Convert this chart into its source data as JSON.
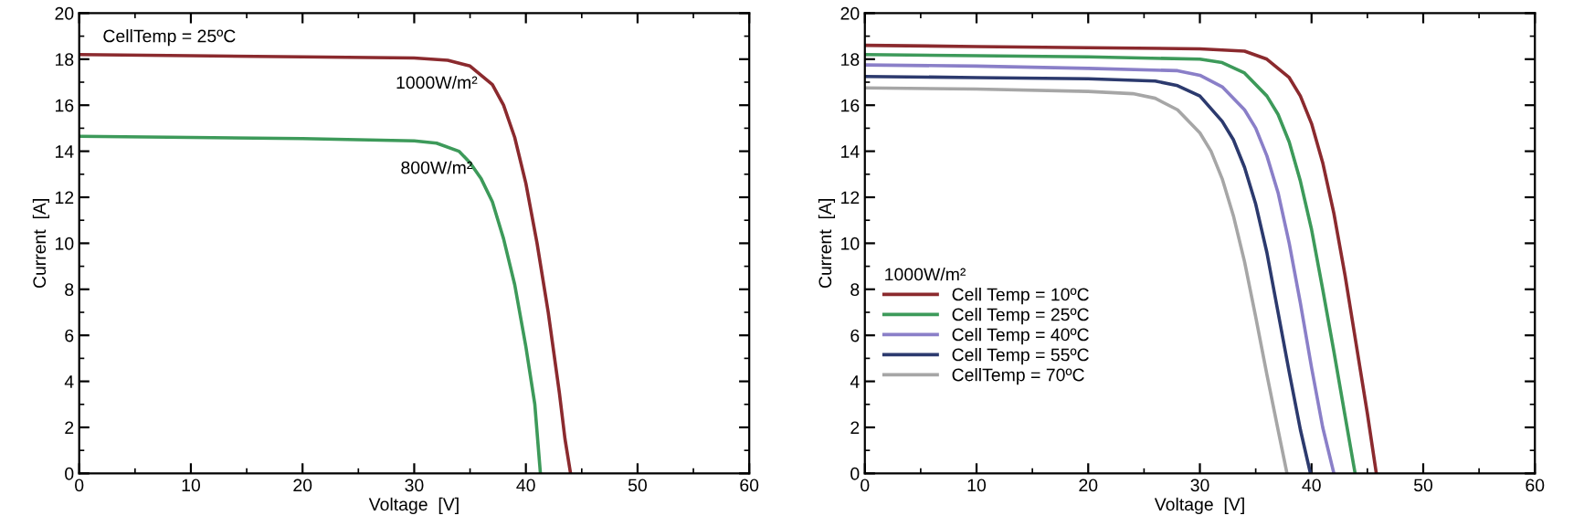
{
  "chart_data": [
    {
      "type": "line",
      "xlabel": "Voltage  [V]",
      "ylabel": "Current  [A]",
      "xlim": [
        0,
        60
      ],
      "ylim": [
        0,
        20
      ],
      "xticks": [
        0,
        10,
        20,
        30,
        40,
        50,
        60
      ],
      "yticks": [
        0,
        2,
        4,
        6,
        8,
        10,
        12,
        14,
        16,
        18,
        20
      ],
      "grid": false,
      "legend": false,
      "marker": "none",
      "line_style": "solid",
      "series": [
        {
          "color": "#8b2a2e",
          "x": [
            0,
            10,
            20,
            30,
            33,
            35,
            37,
            38,
            39,
            40,
            41,
            42,
            43,
            43.5,
            44
          ],
          "values": [
            18.2,
            18.15,
            18.1,
            18.05,
            17.95,
            17.7,
            16.9,
            16.0,
            14.6,
            12.6,
            10.0,
            7.0,
            3.5,
            1.5,
            0
          ]
        },
        {
          "color": "#3d9a5a",
          "x": [
            0,
            10,
            20,
            30,
            32,
            34,
            35,
            36,
            37,
            38,
            39,
            40,
            40.8,
            41.3
          ],
          "values": [
            14.65,
            14.6,
            14.55,
            14.45,
            14.35,
            14.0,
            13.5,
            12.8,
            11.8,
            10.2,
            8.2,
            5.5,
            3.0,
            0
          ]
        }
      ],
      "annotations": [
        {
          "text": "CellTemp = 25ºC"
        },
        {
          "text": "1000W/m²",
          "x": 32,
          "y": 18.05
        },
        {
          "text": "800W/m²",
          "x": 32,
          "y": 14.35
        }
      ]
    },
    {
      "type": "line",
      "xlabel": "Voltage  [V]",
      "ylabel": "Current  [A]",
      "xlim": [
        0,
        60
      ],
      "ylim": [
        0,
        20
      ],
      "xticks": [
        0,
        10,
        20,
        30,
        40,
        50,
        60
      ],
      "yticks": [
        0,
        2,
        4,
        6,
        8,
        10,
        12,
        14,
        16,
        18,
        20
      ],
      "grid": false,
      "legend": "left",
      "legend_title": "1000W/m²",
      "marker": "none",
      "line_style": "solid",
      "series": [
        {
          "name": "Cell Temp = 10ºC",
          "color": "#8b2a2e",
          "x": [
            0,
            10,
            20,
            30,
            34,
            36,
            38,
            39,
            40,
            41,
            42,
            43,
            44,
            45,
            45.8
          ],
          "values": [
            18.6,
            18.55,
            18.5,
            18.45,
            18.35,
            18.0,
            17.2,
            16.4,
            15.2,
            13.5,
            11.3,
            8.6,
            5.6,
            2.6,
            0
          ]
        },
        {
          "name": "Cell Temp = 25ºC",
          "color": "#3d9a5a",
          "x": [
            0,
            10,
            20,
            30,
            32,
            34,
            36,
            37,
            38,
            39,
            40,
            41,
            42,
            43,
            43.9
          ],
          "values": [
            18.2,
            18.15,
            18.1,
            18.0,
            17.85,
            17.4,
            16.4,
            15.6,
            14.4,
            12.7,
            10.6,
            8.0,
            5.3,
            2.5,
            0
          ]
        },
        {
          "name": "Cell Temp = 40ºC",
          "color": "#8a7fc8",
          "x": [
            0,
            10,
            20,
            28,
            30,
            32,
            34,
            35,
            36,
            37,
            38,
            39,
            40,
            41,
            42
          ],
          "values": [
            17.75,
            17.7,
            17.6,
            17.5,
            17.3,
            16.8,
            15.8,
            15.0,
            13.8,
            12.2,
            10.0,
            7.4,
            4.6,
            2.0,
            0
          ]
        },
        {
          "name": "Cell Temp = 55ºC",
          "color": "#2c3a6e",
          "x": [
            0,
            10,
            20,
            26,
            28,
            30,
            32,
            33,
            34,
            35,
            36,
            37,
            38,
            39,
            39.9
          ],
          "values": [
            17.25,
            17.2,
            17.15,
            17.05,
            16.85,
            16.4,
            15.3,
            14.5,
            13.3,
            11.7,
            9.6,
            7.0,
            4.4,
            1.9,
            0
          ]
        },
        {
          "name": "CellTemp = 70ºC",
          "color": "#a6a6a6",
          "x": [
            0,
            10,
            20,
            24,
            26,
            28,
            30,
            31,
            32,
            33,
            34,
            35,
            36,
            37,
            37.8
          ],
          "values": [
            16.75,
            16.7,
            16.6,
            16.5,
            16.3,
            15.8,
            14.8,
            14.0,
            12.8,
            11.2,
            9.2,
            6.8,
            4.3,
            1.9,
            0
          ]
        }
      ]
    }
  ]
}
